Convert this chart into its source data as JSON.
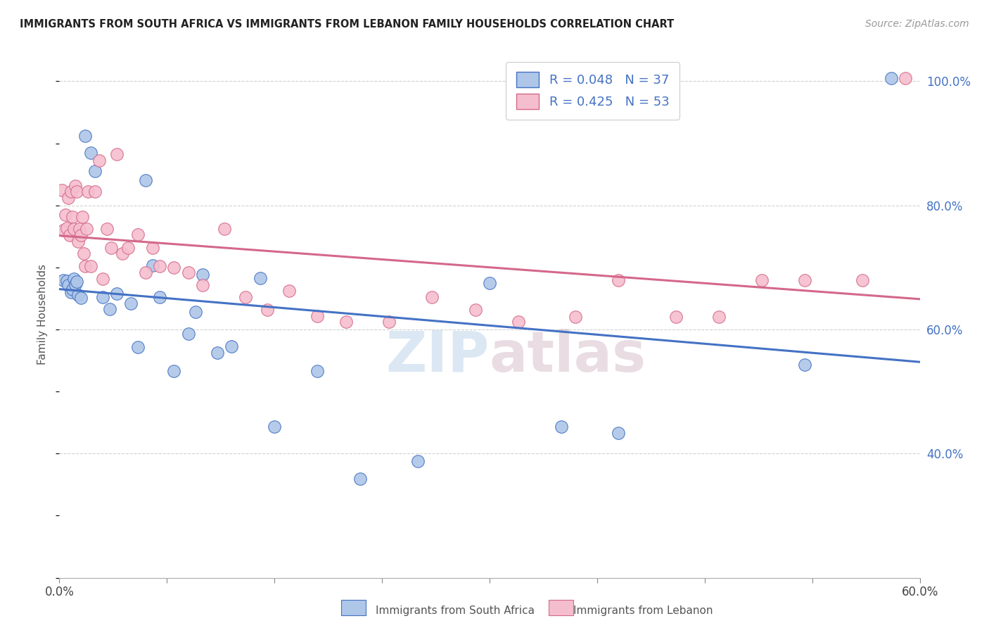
{
  "title": "IMMIGRANTS FROM SOUTH AFRICA VS IMMIGRANTS FROM LEBANON FAMILY HOUSEHOLDS CORRELATION CHART",
  "source": "Source: ZipAtlas.com",
  "ylabel": "Family Households",
  "xlim": [
    0.0,
    0.6
  ],
  "ylim": [
    0.2,
    1.05
  ],
  "x_tick_positions": [
    0.0,
    0.075,
    0.15,
    0.225,
    0.3,
    0.375,
    0.45,
    0.525,
    0.6
  ],
  "x_tick_labels_show": {
    "0.0": "0.0%",
    "0.60": "60.0%"
  },
  "y_ticks_right": [
    0.4,
    0.6,
    0.8,
    1.0
  ],
  "y_tick_labels_right": [
    "40.0%",
    "60.0%",
    "80.0%",
    "100.0%"
  ],
  "legend_label_blue": "R = 0.048   N = 37",
  "legend_label_pink": "R = 0.425   N = 53",
  "blue_scatter_color": "#aec6e8",
  "pink_scatter_color": "#f5bece",
  "blue_edge_color": "#4472c4",
  "pink_edge_color": "#d4688a",
  "blue_line_color": "#4472c4",
  "pink_line_color": "#d4688a",
  "legend_text_color": "#4472c4",
  "watermark_color": "#d0e4f5",
  "background_color": "#ffffff",
  "grid_color": "#d0d0d0",
  "blue_points_x": [
    0.003,
    0.005,
    0.006,
    0.008,
    0.009,
    0.01,
    0.011,
    0.012,
    0.013,
    0.015,
    0.018,
    0.022,
    0.025,
    0.03,
    0.035,
    0.04,
    0.05,
    0.055,
    0.06,
    0.065,
    0.07,
    0.08,
    0.09,
    0.095,
    0.1,
    0.11,
    0.12,
    0.14,
    0.15,
    0.18,
    0.21,
    0.25,
    0.3,
    0.35,
    0.39,
    0.52,
    0.58
  ],
  "blue_points_y": [
    0.68,
    0.678,
    0.672,
    0.66,
    0.665,
    0.682,
    0.673,
    0.677,
    0.656,
    0.651,
    0.912,
    0.885,
    0.855,
    0.652,
    0.633,
    0.658,
    0.642,
    0.572,
    0.84,
    0.703,
    0.652,
    0.533,
    0.593,
    0.628,
    0.688,
    0.563,
    0.573,
    0.683,
    0.443,
    0.533,
    0.36,
    0.388,
    0.675,
    0.443,
    0.433,
    0.543,
    1.005
  ],
  "pink_points_x": [
    0.002,
    0.003,
    0.004,
    0.005,
    0.006,
    0.007,
    0.008,
    0.009,
    0.01,
    0.011,
    0.012,
    0.013,
    0.014,
    0.015,
    0.016,
    0.017,
    0.018,
    0.019,
    0.02,
    0.022,
    0.025,
    0.028,
    0.03,
    0.033,
    0.036,
    0.04,
    0.044,
    0.048,
    0.055,
    0.06,
    0.065,
    0.07,
    0.08,
    0.09,
    0.1,
    0.115,
    0.13,
    0.145,
    0.16,
    0.18,
    0.2,
    0.23,
    0.26,
    0.29,
    0.32,
    0.36,
    0.39,
    0.43,
    0.46,
    0.49,
    0.52,
    0.56,
    0.59
  ],
  "pink_points_y": [
    0.825,
    0.76,
    0.785,
    0.763,
    0.812,
    0.752,
    0.822,
    0.782,
    0.762,
    0.832,
    0.822,
    0.742,
    0.762,
    0.752,
    0.782,
    0.722,
    0.702,
    0.762,
    0.822,
    0.702,
    0.822,
    0.872,
    0.682,
    0.762,
    0.732,
    0.882,
    0.722,
    0.732,
    0.753,
    0.692,
    0.732,
    0.702,
    0.7,
    0.692,
    0.672,
    0.762,
    0.652,
    0.632,
    0.662,
    0.622,
    0.612,
    0.612,
    0.652,
    0.632,
    0.612,
    0.62,
    0.68,
    0.62,
    0.62,
    0.68,
    0.68,
    0.68,
    1.005
  ],
  "bottom_label_blue": "Immigrants from South Africa",
  "bottom_label_pink": "Immigrants from Lebanon"
}
